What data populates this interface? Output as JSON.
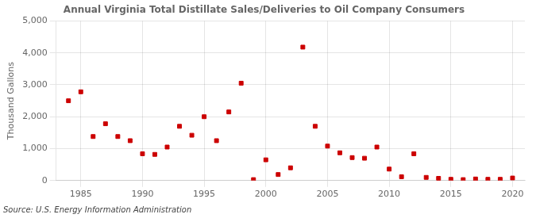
{
  "chart_data": {
    "type": "scatter",
    "title": "Annual Virginia Total Distillate Sales/Deliveries to Oil Company Consumers",
    "ylabel": "Thousand Gallons",
    "source": "Source: U.S. Energy Information Administration",
    "color": "#cc0000",
    "marker": "square",
    "grid": true,
    "xlim": [
      1983,
      2021
    ],
    "xticks": [
      1985,
      1990,
      1995,
      2000,
      2005,
      2010,
      2015,
      2020
    ],
    "ylim": [
      0,
      5000
    ],
    "yticks": [
      0,
      {
        "value": 1000,
        "label": "1,000"
      },
      {
        "value": 2000,
        "label": "2,000"
      },
      {
        "value": 3000,
        "label": "3,000"
      },
      {
        "value": 4000,
        "label": "4,000"
      },
      {
        "value": 5000,
        "label": "5,000"
      }
    ],
    "x": [
      1984,
      1985,
      1986,
      1987,
      1988,
      1989,
      1990,
      1991,
      1992,
      1993,
      1994,
      1995,
      1996,
      1997,
      1998,
      1999,
      2000,
      2001,
      2002,
      2003,
      2004,
      2005,
      2006,
      2007,
      2008,
      2009,
      2010,
      2011,
      2012,
      2013,
      2014,
      2015,
      2016,
      2017,
      2018,
      2019,
      2020
    ],
    "values": [
      2500,
      2780,
      1380,
      1780,
      1380,
      1250,
      840,
      820,
      1050,
      1700,
      1420,
      2000,
      1250,
      2150,
      3050,
      30,
      650,
      190,
      400,
      4180,
      1700,
      1080,
      870,
      720,
      700,
      1050,
      360,
      120,
      840,
      100,
      70,
      40,
      30,
      50,
      40,
      40,
      80
    ]
  }
}
